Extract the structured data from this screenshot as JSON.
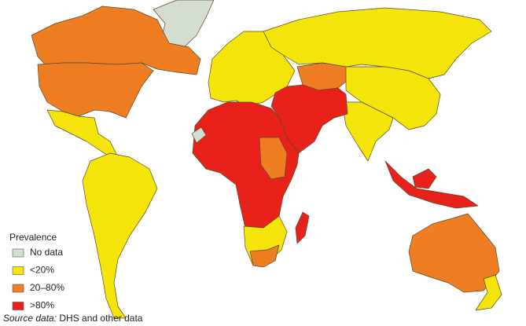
{
  "legend": {
    "title": "Prevalence",
    "items": [
      {
        "label": "No data",
        "color": "#d3ddd0"
      },
      {
        "label": "<20%",
        "color": "#f5e40a"
      },
      {
        "label": "20–80%",
        "color": "#ef7d22"
      },
      {
        "label": ">80%",
        "color": "#e8211b"
      }
    ]
  },
  "source": {
    "prefix": "Source data:",
    "text": "DHS and other data"
  }
}
